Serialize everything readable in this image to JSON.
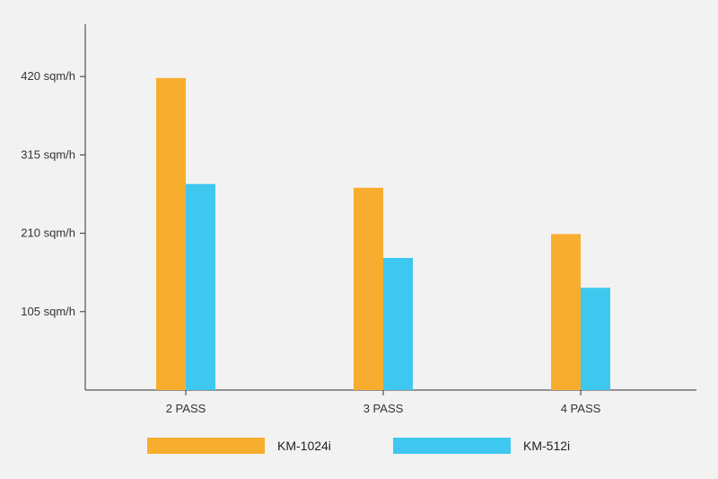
{
  "chart_data": {
    "type": "bar",
    "categories": [
      "2 PASS",
      "3 PASS",
      "4 PASS"
    ],
    "series": [
      {
        "name": "KM-1024i",
        "color": "#f7ae2e",
        "values": [
          418,
          271,
          209
        ]
      },
      {
        "name": "KM-512i",
        "color": "#3ec8f0",
        "values": [
          276,
          177,
          137
        ]
      }
    ],
    "y_ticks": [
      105,
      210,
      315,
      420
    ],
    "y_tick_labels": [
      "105 sqm/h",
      "210 sqm/h",
      "315 sqm/h",
      "420 sqm/h"
    ],
    "ylim": [
      0,
      490
    ],
    "legend": "bottom",
    "grid": false,
    "axis_color": "#333333",
    "background": "#f2f2f2"
  }
}
